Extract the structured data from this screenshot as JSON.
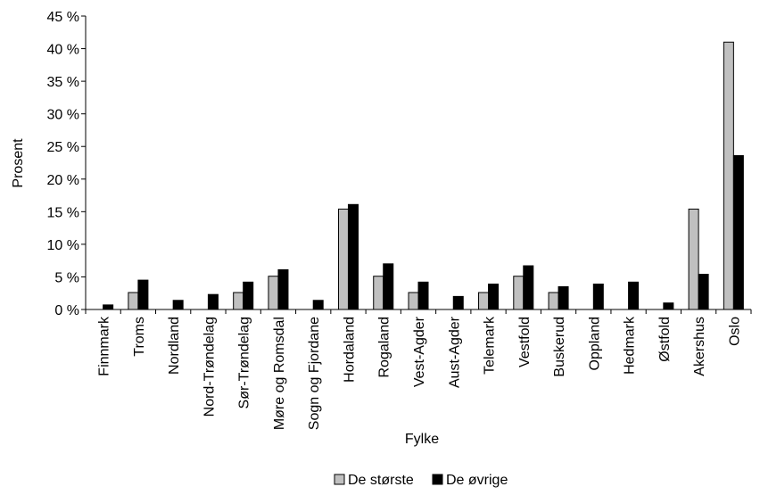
{
  "chart_data": {
    "type": "bar",
    "xlabel": "Fylke",
    "ylabel": "Prosent",
    "ylim": [
      0,
      45
    ],
    "yticks": [
      "0 %",
      "5 %",
      "10 %",
      "15 %",
      "20 %",
      "25 %",
      "30 %",
      "35 %",
      "40 %",
      "45 %"
    ],
    "grid": false,
    "legend_position": "bottom",
    "categories": [
      "Finnmark",
      "Troms",
      "Nordland",
      "Nord-Trøndelag",
      "Sør-Trøndelag",
      "Møre og Romsdal",
      "Sogn og Fjordane",
      "Hordaland",
      "Rogaland",
      "Vest-Agder",
      "Aust-Agder",
      "Telemark",
      "Vestfold",
      "Buskerud",
      "Oppland",
      "Hedmark",
      "Østfold",
      "Akershus",
      "Oslo"
    ],
    "series": [
      {
        "name": "De største",
        "color": "#c0c0c0",
        "values": [
          0,
          2.6,
          0,
          0,
          2.6,
          5.1,
          0,
          15.4,
          5.1,
          2.6,
          0,
          2.6,
          5.1,
          2.6,
          0,
          0,
          0,
          15.4,
          41.0
        ]
      },
      {
        "name": "De øvrige",
        "color": "#000000",
        "values": [
          0.7,
          4.5,
          1.4,
          2.3,
          4.2,
          6.1,
          1.4,
          16.1,
          7.0,
          4.2,
          2.0,
          3.9,
          6.7,
          3.5,
          3.9,
          4.2,
          1.0,
          5.4,
          23.6
        ]
      }
    ]
  }
}
